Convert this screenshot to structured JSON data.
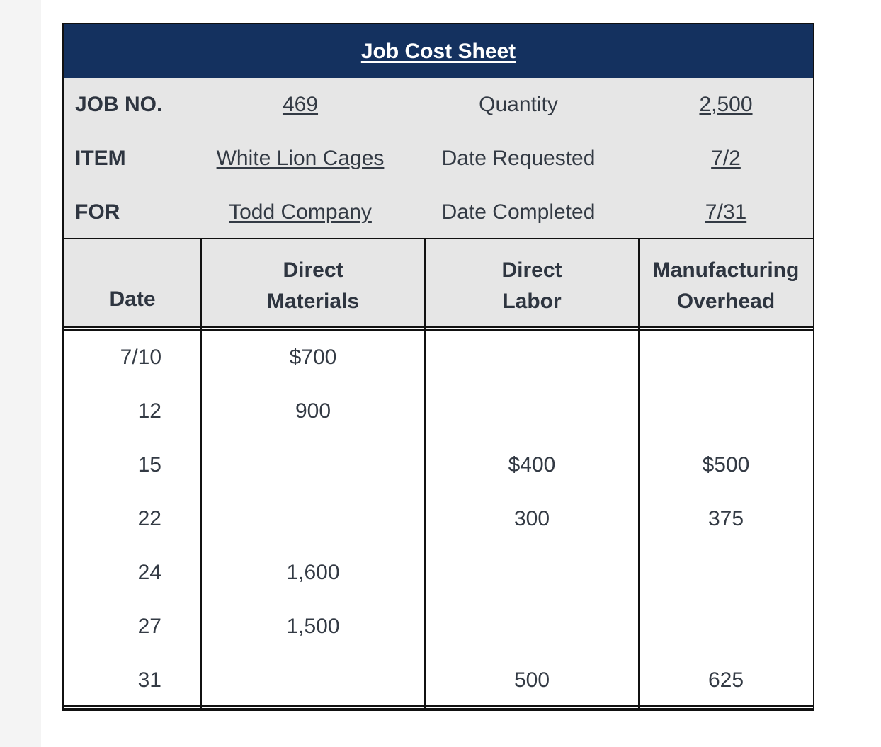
{
  "title": "Job Cost Sheet",
  "info": [
    {
      "label": "JOB NO.",
      "value": "469",
      "label2": "Quantity",
      "value2": "2,500"
    },
    {
      "label": "ITEM",
      "value": "White Lion Cages",
      "label2": "Date Requested",
      "value2": "7/2"
    },
    {
      "label": "FOR",
      "value": "Todd Company",
      "label2": "Date Completed",
      "value2": "7/31"
    }
  ],
  "headers": {
    "date": "Date",
    "dm_line1": "Direct",
    "dm_line2": "Materials",
    "dl_line1": "Direct",
    "dl_line2": "Labor",
    "mo_line1": "Manufacturing",
    "mo_line2": "Overhead"
  },
  "rows": [
    {
      "date": "7/10",
      "dm": "$700",
      "dl": "",
      "mo": ""
    },
    {
      "date": "12",
      "dm": "900",
      "dl": "",
      "mo": ""
    },
    {
      "date": "15",
      "dm": "",
      "dl": "$400",
      "mo": "$500"
    },
    {
      "date": "22",
      "dm": "",
      "dl": "300",
      "mo": "375"
    },
    {
      "date": "24",
      "dm": "1,600",
      "dl": "",
      "mo": ""
    },
    {
      "date": "27",
      "dm": "1,500",
      "dl": "",
      "mo": ""
    },
    {
      "date": "31",
      "dm": "",
      "dl": "500",
      "mo": "625"
    }
  ]
}
